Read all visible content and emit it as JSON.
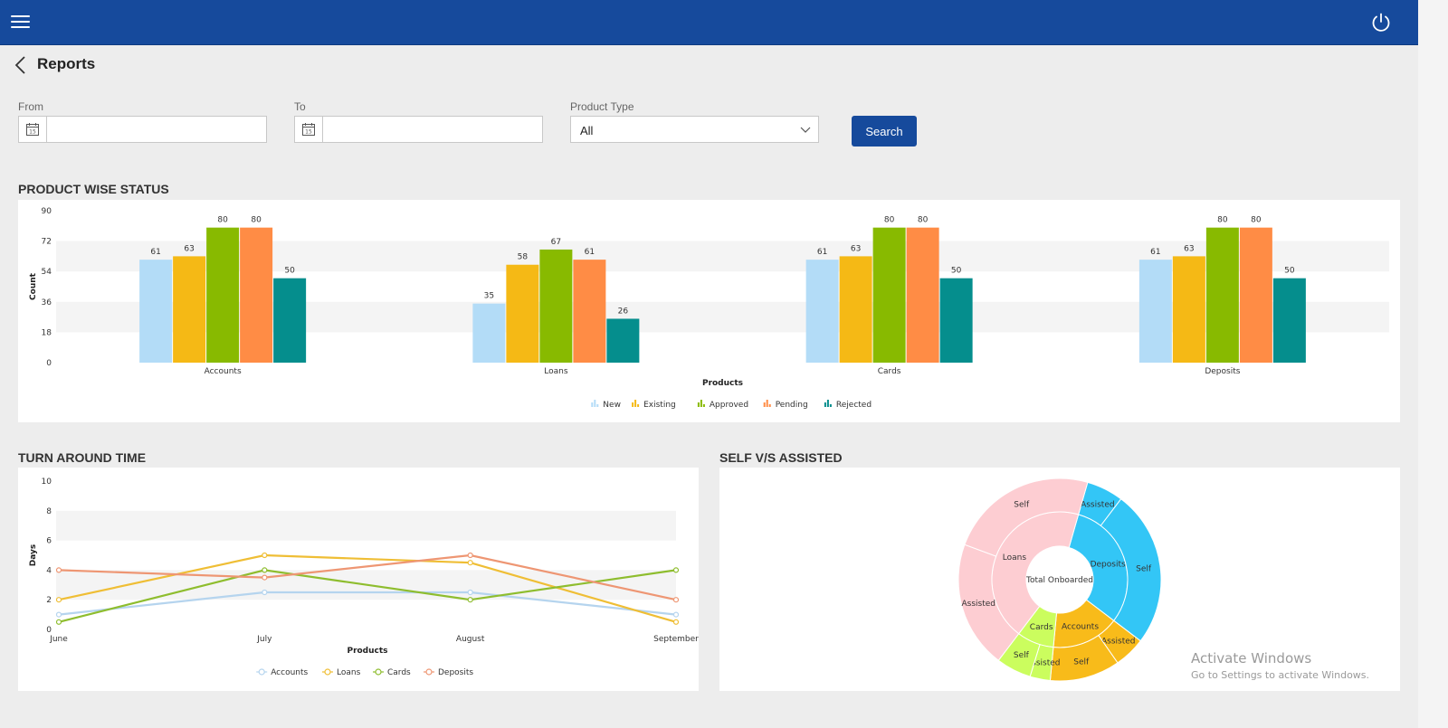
{
  "header": {
    "menu_icon": "hamburger-menu-icon",
    "power_icon": "power-icon",
    "color": "#164a9c"
  },
  "page": {
    "title": "Reports",
    "back_icon": "chevron-left-icon"
  },
  "filters": {
    "from_label": "From",
    "from_value": "",
    "to_label": "To",
    "to_value": "",
    "product_type_label": "Product Type",
    "product_type_value": "All",
    "search_label": "Search"
  },
  "sections": {
    "product_wise": "PRODUCT WISE STATUS",
    "turnaround": "TURN AROUND TIME",
    "self_assisted": "SELF V/S ASSISTED"
  },
  "watermark": {
    "line1": "Activate Windows",
    "line2": "Go to Settings to activate Windows."
  },
  "chart_data": [
    {
      "type": "bar",
      "title": "PRODUCT WISE STATUS",
      "xlabel": "Products",
      "ylabel": "Count",
      "categories": [
        "Accounts",
        "Loans",
        "Cards",
        "Deposits"
      ],
      "yticks": [
        0,
        18,
        36,
        54,
        72,
        90
      ],
      "ylim": [
        0,
        90
      ],
      "series": [
        {
          "name": "New",
          "color": "#b3dcf7",
          "values": [
            61,
            35,
            61,
            61
          ]
        },
        {
          "name": "Existing",
          "color": "#f5b915",
          "values": [
            63,
            58,
            63,
            63
          ]
        },
        {
          "name": "Approved",
          "color": "#88ba00",
          "values": [
            80,
            67,
            80,
            80
          ]
        },
        {
          "name": "Pending",
          "color": "#ff8c45",
          "values": [
            80,
            61,
            80,
            80
          ]
        },
        {
          "name": "Rejected",
          "color": "#058e8d",
          "values": [
            50,
            26,
            50,
            50
          ]
        }
      ],
      "legend": "bottom-center",
      "data_labels": true
    },
    {
      "type": "line",
      "title": "TURN AROUND TIME",
      "xlabel": "Products",
      "ylabel": "Days",
      "categories": [
        "June",
        "July",
        "August",
        "September"
      ],
      "yticks": [
        0,
        2,
        4,
        6,
        8,
        10
      ],
      "ylim": [
        0,
        10
      ],
      "series": [
        {
          "name": "Accounts",
          "color": "#b5d4ee",
          "values": [
            1,
            2.5,
            2.5,
            1
          ]
        },
        {
          "name": "Loans",
          "color": "#efbe35",
          "values": [
            2,
            5,
            4.5,
            0.5
          ]
        },
        {
          "name": "Cards",
          "color": "#8ebd2e",
          "values": [
            0.5,
            4,
            2,
            4
          ]
        },
        {
          "name": "Deposits",
          "color": "#ee9673",
          "values": [
            4,
            3.5,
            5,
            2
          ]
        }
      ],
      "legend": "bottom-center"
    },
    {
      "type": "pie",
      "subtype": "sunburst",
      "title": "SELF V/S ASSISTED",
      "center_label": "Total Onboarded",
      "inner": [
        {
          "name": "Deposits",
          "value": 10.5,
          "color": "#33c6f6"
        },
        {
          "name": "Accounts",
          "value": 5.5,
          "color": "#f8bb1a"
        },
        {
          "name": "Cards",
          "value": 3,
          "color": "#cbfd5e"
        },
        {
          "name": "Loans",
          "value": 15,
          "color": "#fdcdd2"
        }
      ],
      "outer": [
        {
          "name": "Assisted",
          "parent": "Deposits",
          "value": 2
        },
        {
          "name": "Self",
          "parent": "Deposits",
          "value": 8.5
        },
        {
          "name": "Assisted",
          "parent": "Accounts",
          "value": 1.7
        },
        {
          "name": "Self",
          "parent": "Accounts",
          "value": 3.8
        },
        {
          "name": "Assisted",
          "parent": "Cards",
          "value": 1.1
        },
        {
          "name": "Self",
          "parent": "Cards",
          "value": 1.9
        },
        {
          "name": "Assisted",
          "parent": "Loans",
          "value": 6.9
        },
        {
          "name": "Self",
          "parent": "Loans",
          "value": 8.1
        }
      ]
    }
  ]
}
